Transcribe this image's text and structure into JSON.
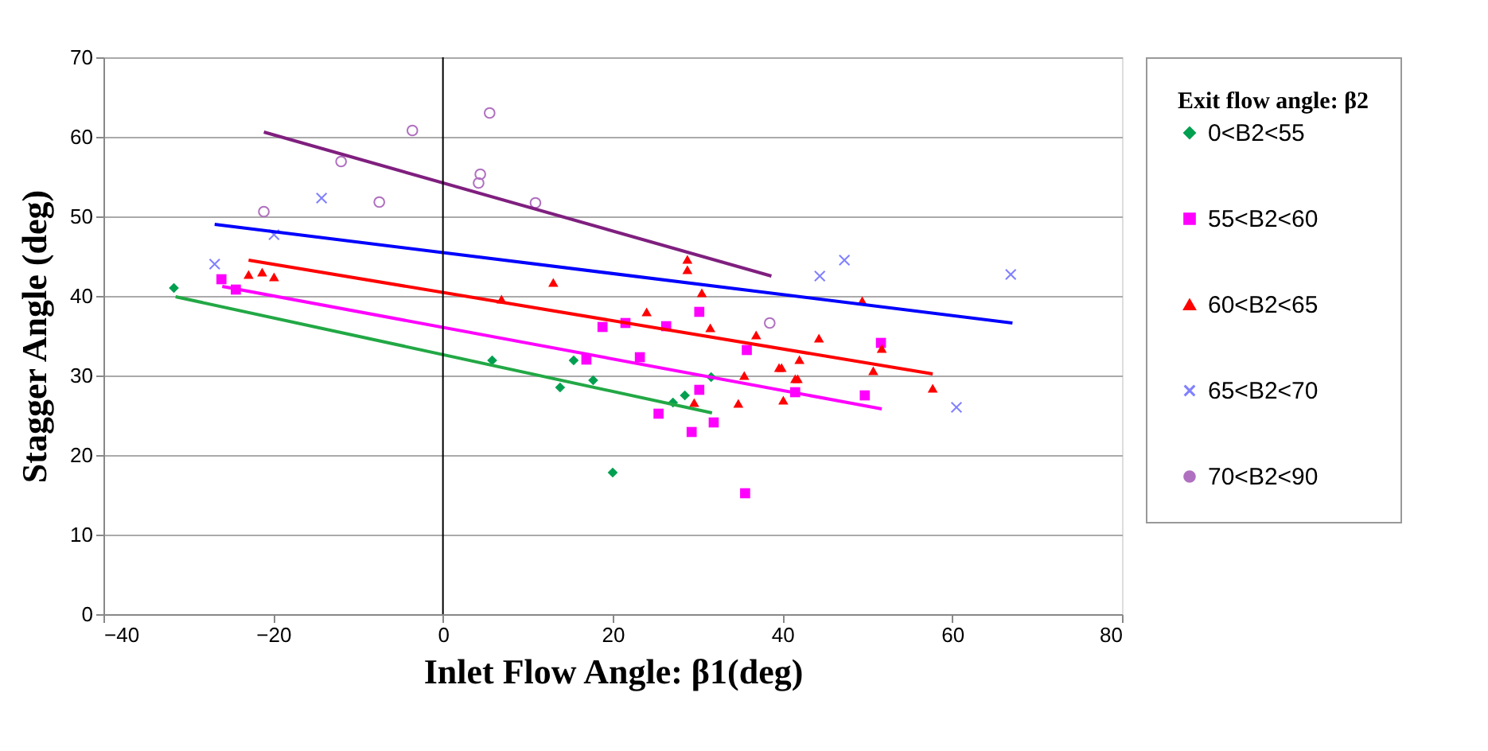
{
  "chart_data": {
    "type": "scatter",
    "xlabel": "Inlet Flow Angle: β1(deg)",
    "ylabel": "Stagger Angle (deg)",
    "legend_title": "Exit flow angle: β2",
    "xlim": [
      -40,
      80
    ],
    "xticks": [
      -40,
      -20,
      0,
      20,
      40,
      60,
      80
    ],
    "ylim": [
      0,
      70
    ],
    "yticks": [
      0,
      10,
      20,
      30,
      40,
      50,
      60,
      70
    ],
    "grid": "y",
    "legend": "right",
    "ref_lines": [
      {
        "axis": "x",
        "value": 0,
        "color": "#000000"
      }
    ],
    "series": [
      {
        "name": "0<B2<55",
        "marker": "diamond",
        "color": "#00a050",
        "x": [
          -31.7,
          5.8,
          13.8,
          15.4,
          17.7,
          20.0,
          27.1,
          28.5,
          31.6
        ],
        "values": [
          41.0,
          31.9,
          28.5,
          31.9,
          29.4,
          17.8,
          26.6,
          27.5,
          29.8
        ]
      },
      {
        "name": "55<B2<60",
        "marker": "square",
        "color": "#ff00ff",
        "x": [
          -26.1,
          -24.4,
          16.9,
          18.8,
          21.5,
          26.3,
          30.2,
          23.2,
          35.8,
          51.6,
          30.2,
          25.4,
          31.9,
          29.3,
          41.5,
          49.7,
          35.6
        ],
        "values": [
          42.1,
          40.8,
          32.0,
          36.1,
          36.6,
          36.2,
          38.0,
          32.3,
          33.2,
          34.1,
          28.2,
          25.2,
          24.1,
          22.9,
          27.9,
          27.5,
          15.2
        ]
      },
      {
        "name": "60<B2<65",
        "marker": "triangle",
        "color": "#ff0000",
        "x": [
          -22.9,
          -21.3,
          -19.9,
          6.9,
          13.0,
          24.0,
          28.8,
          28.8,
          30.5,
          31.5,
          36.9,
          44.3,
          49.4,
          51.7,
          35.5,
          39.6,
          39.9,
          42.0,
          41.5,
          41.8,
          50.7,
          57.7,
          29.6,
          34.8,
          40.1
        ],
        "values": [
          42.7,
          43.0,
          42.4,
          39.6,
          41.7,
          38.0,
          44.6,
          43.3,
          40.4,
          36.0,
          35.1,
          34.7,
          39.4,
          33.4,
          30.0,
          31.0,
          31.0,
          32.0,
          29.6,
          29.6,
          30.6,
          28.4,
          26.6,
          26.5,
          26.9
        ]
      },
      {
        "name": "65<B2<70",
        "marker": "cross",
        "color": "#8080ff",
        "x": [
          -26.9,
          -19.9,
          -14.3,
          44.4,
          47.3,
          66.9,
          60.5
        ],
        "values": [
          44.0,
          47.7,
          52.3,
          42.5,
          44.5,
          42.7,
          26.0
        ]
      },
      {
        "name": "70<B2<90",
        "marker": "circle",
        "color": "#b070c0",
        "x": [
          -21.1,
          -12.0,
          -7.5,
          -3.6,
          5.5,
          4.4,
          4.2,
          10.9,
          38.5
        ],
        "values": [
          50.6,
          56.9,
          51.8,
          60.8,
          63.0,
          55.3,
          54.2,
          51.7,
          36.6
        ]
      },
      {
        "type": "line",
        "color": "#22a845",
        "x": [
          -31.5,
          31.7
        ],
        "values": [
          39.9,
          25.3
        ]
      },
      {
        "type": "line",
        "color": "#ff00ff",
        "x": [
          -26.0,
          51.7
        ],
        "values": [
          41.2,
          25.8
        ]
      },
      {
        "type": "line",
        "color": "#ff0000",
        "x": [
          -22.9,
          57.7
        ],
        "values": [
          44.5,
          30.2
        ]
      },
      {
        "type": "line",
        "color": "#0000ff",
        "x": [
          -26.9,
          67.1
        ],
        "values": [
          49.0,
          36.6
        ]
      },
      {
        "type": "line",
        "color": "#7f1f7f",
        "x": [
          -21.1,
          38.7
        ],
        "values": [
          60.6,
          42.5
        ]
      }
    ]
  }
}
